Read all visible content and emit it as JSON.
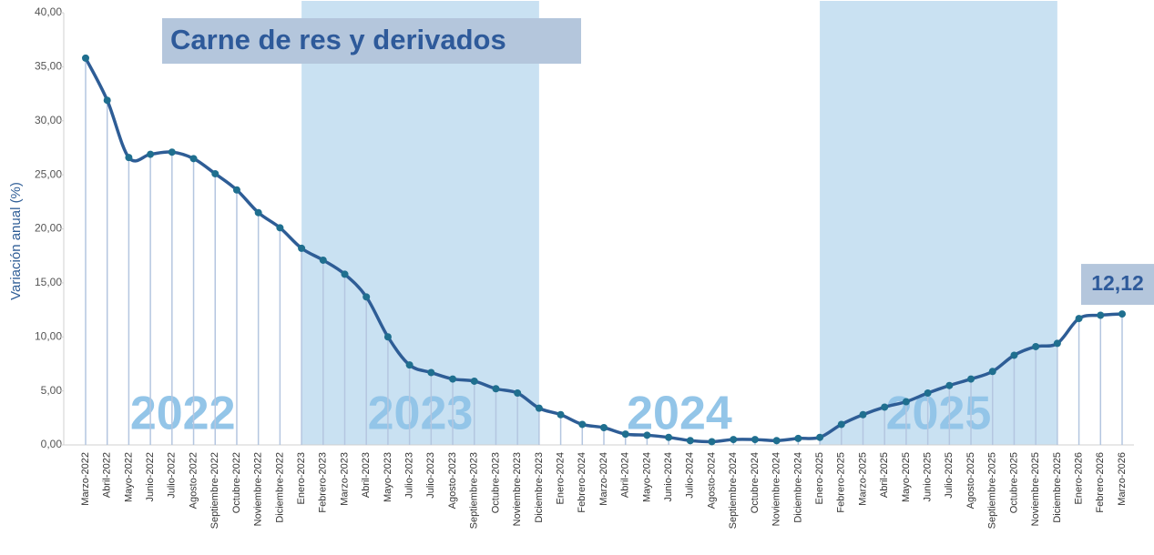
{
  "chart_data": {
    "type": "line",
    "title": "Carne de res y derivados",
    "y_label": "Variación anual (%)",
    "categories": [
      "Marzo-2022",
      "Abril-2022",
      "Mayo-2022",
      "Junio-2022",
      "Julio-2022",
      "Agosto-2022",
      "Septiembre-2022",
      "Octubre-2022",
      "Noviembre-2022",
      "Diciembre-2022",
      "Enero-2023",
      "Febrero-2023",
      "Marzo-2023",
      "Abril-2023",
      "Mayo-2023",
      "Julio-2023",
      "Julio-2023",
      "Agosto-2023",
      "Septiembre-2023",
      "Octubre-2023",
      "Noviembre-2023",
      "Diciembre-2023",
      "Enero-2024",
      "Febrero-2024",
      "Marzo-2024",
      "Abril-2024",
      "Mayo-2024",
      "Junio-2024",
      "Julio-2024",
      "Agosto-2024",
      "Septiembre-2024",
      "Octubre-2024",
      "Noviembre-2024",
      "Diciembre-2024",
      "Enero-2025",
      "Febrero-2025",
      "Marzo-2025",
      "Abril-2025",
      "Mayo-2025",
      "Junio-2025",
      "Julio-2025",
      "Agosto-2025",
      "Septiembre-2025",
      "Octubre-2025",
      "Noviembre-2025",
      "Diciembre-2025",
      "Enero-2026",
      "Febrero-2026",
      "Marzo-2026"
    ],
    "series": [
      {
        "name": "Carne de res y derivados",
        "color": "#2e5d96",
        "values": [
          35.8,
          31.9,
          26.6,
          26.9,
          27.1,
          26.5,
          25.1,
          23.6,
          21.5,
          20.1,
          18.2,
          17.1,
          15.8,
          13.7,
          10.0,
          7.4,
          6.7,
          6.1,
          5.9,
          5.2,
          4.8,
          3.4,
          2.8,
          1.9,
          1.6,
          1.0,
          0.9,
          0.7,
          0.4,
          0.3,
          0.5,
          0.5,
          0.4,
          0.6,
          0.7,
          1.9,
          2.8,
          3.5,
          4.0,
          4.8,
          5.5,
          6.1,
          6.8,
          8.3,
          9.1,
          9.4,
          11.7,
          12.0,
          12.12
        ],
        "value_labels": [
          null,
          null,
          null,
          null,
          null,
          null,
          null,
          null,
          null,
          null,
          null,
          null,
          null,
          null,
          null,
          null,
          null,
          null,
          null,
          null,
          null,
          null,
          null,
          null,
          null,
          null,
          null,
          null,
          null,
          null,
          null,
          null,
          null,
          null,
          null,
          null,
          null,
          null,
          null,
          null,
          null,
          null,
          null,
          null,
          null,
          null,
          null,
          null,
          "12,12"
        ]
      }
    ],
    "annotations": [
      "2022",
      "2023",
      "2024",
      "2025"
    ],
    "ylim": [
      0,
      40
    ],
    "yticks": [
      {
        "value": 0,
        "label": "0,00"
      },
      {
        "value": 5,
        "label": "5,00"
      },
      {
        "value": 10,
        "label": "10,00"
      },
      {
        "value": 15,
        "label": "15,00"
      },
      {
        "value": 20,
        "label": "20,00"
      },
      {
        "value": 25,
        "label": "25,00"
      },
      {
        "value": 30,
        "label": "30,00"
      },
      {
        "value": 35,
        "label": "35,00"
      },
      {
        "value": 40,
        "label": "40,00"
      }
    ]
  }
}
